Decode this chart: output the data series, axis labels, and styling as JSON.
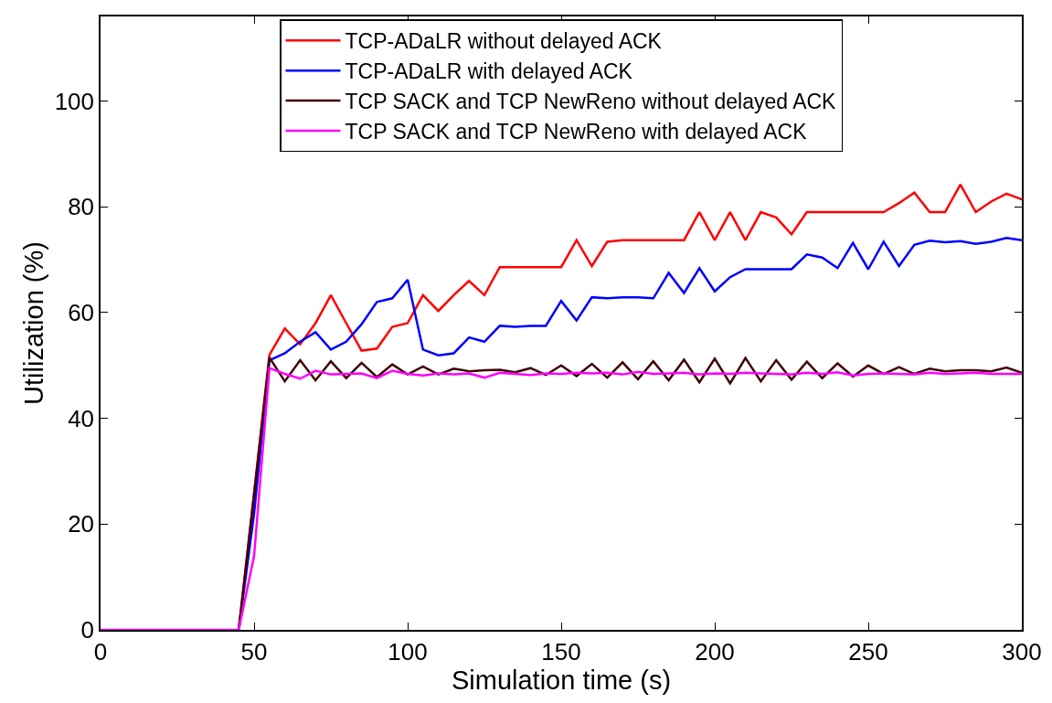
{
  "chart_data": {
    "type": "line",
    "xlabel": "Simulation time (s)",
    "ylabel": "Utilization (%)",
    "x": [
      0,
      5,
      10,
      15,
      20,
      25,
      30,
      35,
      40,
      45,
      50,
      55,
      60,
      65,
      70,
      75,
      80,
      85,
      90,
      95,
      100,
      105,
      110,
      115,
      120,
      125,
      130,
      135,
      140,
      145,
      150,
      155,
      160,
      165,
      170,
      175,
      180,
      185,
      190,
      195,
      200,
      205,
      210,
      215,
      220,
      225,
      230,
      235,
      240,
      245,
      250,
      255,
      260,
      265,
      270,
      275,
      280,
      285,
      290,
      295,
      300
    ],
    "series": [
      {
        "name": "TCP-ADaLR without delayed ACK",
        "color": "#ff0000",
        "values": [
          null,
          null,
          null,
          null,
          null,
          null,
          null,
          null,
          null,
          0,
          26,
          52,
          57,
          54,
          58,
          63.3,
          58,
          52.8,
          53.2,
          57.3,
          58,
          63.3,
          60.3,
          63.3,
          66,
          63.3,
          68.6,
          68.6,
          68.6,
          68.6,
          68.6,
          73.7,
          68.8,
          73.4,
          73.7,
          73.7,
          73.7,
          73.7,
          73.7,
          79,
          73.7,
          79,
          73.7,
          79,
          78,
          74.8,
          79,
          79,
          79,
          79,
          79,
          79,
          80.7,
          82.7,
          79,
          79,
          84.2,
          79,
          81,
          82.5,
          81.4
        ]
      },
      {
        "name": "TCP-ADaLR with delayed ACK",
        "color": "#0000ff",
        "values": [
          null,
          null,
          null,
          null,
          null,
          null,
          null,
          null,
          null,
          0,
          22,
          51,
          52.3,
          54.5,
          56.3,
          53,
          54.5,
          57.8,
          62,
          62.7,
          66.2,
          53,
          51.9,
          52.3,
          55.3,
          54.5,
          57.5,
          57.3,
          57.5,
          57.5,
          62.2,
          58.5,
          62.9,
          62.7,
          62.9,
          62.9,
          62.7,
          67.5,
          63.7,
          68.4,
          64,
          66.7,
          68.2,
          68.2,
          68.2,
          68.2,
          71,
          70.4,
          68.4,
          73.2,
          68.2,
          73.4,
          68.8,
          72.8,
          73.6,
          73.3,
          73.5,
          73,
          73.4,
          74.1,
          73.7
        ]
      },
      {
        "name": "TCP SACK and TCP NewReno without delayed ACK",
        "color": "#400000",
        "values": [
          null,
          null,
          null,
          null,
          null,
          null,
          null,
          null,
          null,
          0,
          25.5,
          51.5,
          47,
          51,
          47.2,
          50.8,
          47.6,
          50.5,
          47.8,
          50.2,
          48.3,
          49.8,
          48.3,
          49.4,
          48.9,
          49.1,
          49.2,
          48.7,
          49.5,
          48.2,
          50,
          48,
          50.3,
          47.7,
          50.6,
          47.4,
          50.8,
          47.2,
          51.1,
          46.8,
          51.3,
          46.6,
          51.4,
          47,
          51,
          47.3,
          50.7,
          47.6,
          50.4,
          47.9,
          50,
          48.4,
          49.7,
          48.4,
          49.4,
          48.9,
          49.1,
          49.1,
          48.9,
          49.6,
          48.6
        ]
      },
      {
        "name": "TCP SACK and TCP NewReno with delayed ACK",
        "color": "#ff00ff",
        "values": [
          0,
          0,
          0,
          0,
          0,
          0,
          0,
          0,
          0,
          0,
          14,
          49.5,
          48.4,
          47.5,
          49,
          48.3,
          48.4,
          48.5,
          47.6,
          49,
          48.4,
          48.1,
          48.5,
          48.3,
          48.5,
          47.7,
          48.6,
          48.4,
          48.2,
          48.5,
          48.4,
          48.6,
          48.5,
          48.6,
          48.3,
          48.8,
          48.4,
          48.5,
          48.6,
          48.3,
          48.5,
          48.4,
          48.6,
          48.5,
          48.4,
          48.3,
          48.6,
          48.4,
          48.7,
          48.1,
          48.4,
          48.5,
          48.4,
          48.3,
          48.6,
          48.4,
          48.5,
          48.6,
          48.4,
          48.4,
          48.4
        ]
      }
    ],
    "xlim": [
      0,
      300
    ],
    "xticks": [
      0,
      50,
      100,
      150,
      200,
      250,
      300
    ],
    "ylim": [
      0,
      116
    ],
    "yticks": [
      0,
      20,
      40,
      60,
      80,
      100
    ],
    "legend": "top",
    "marker": "none",
    "line_style": "solid"
  }
}
